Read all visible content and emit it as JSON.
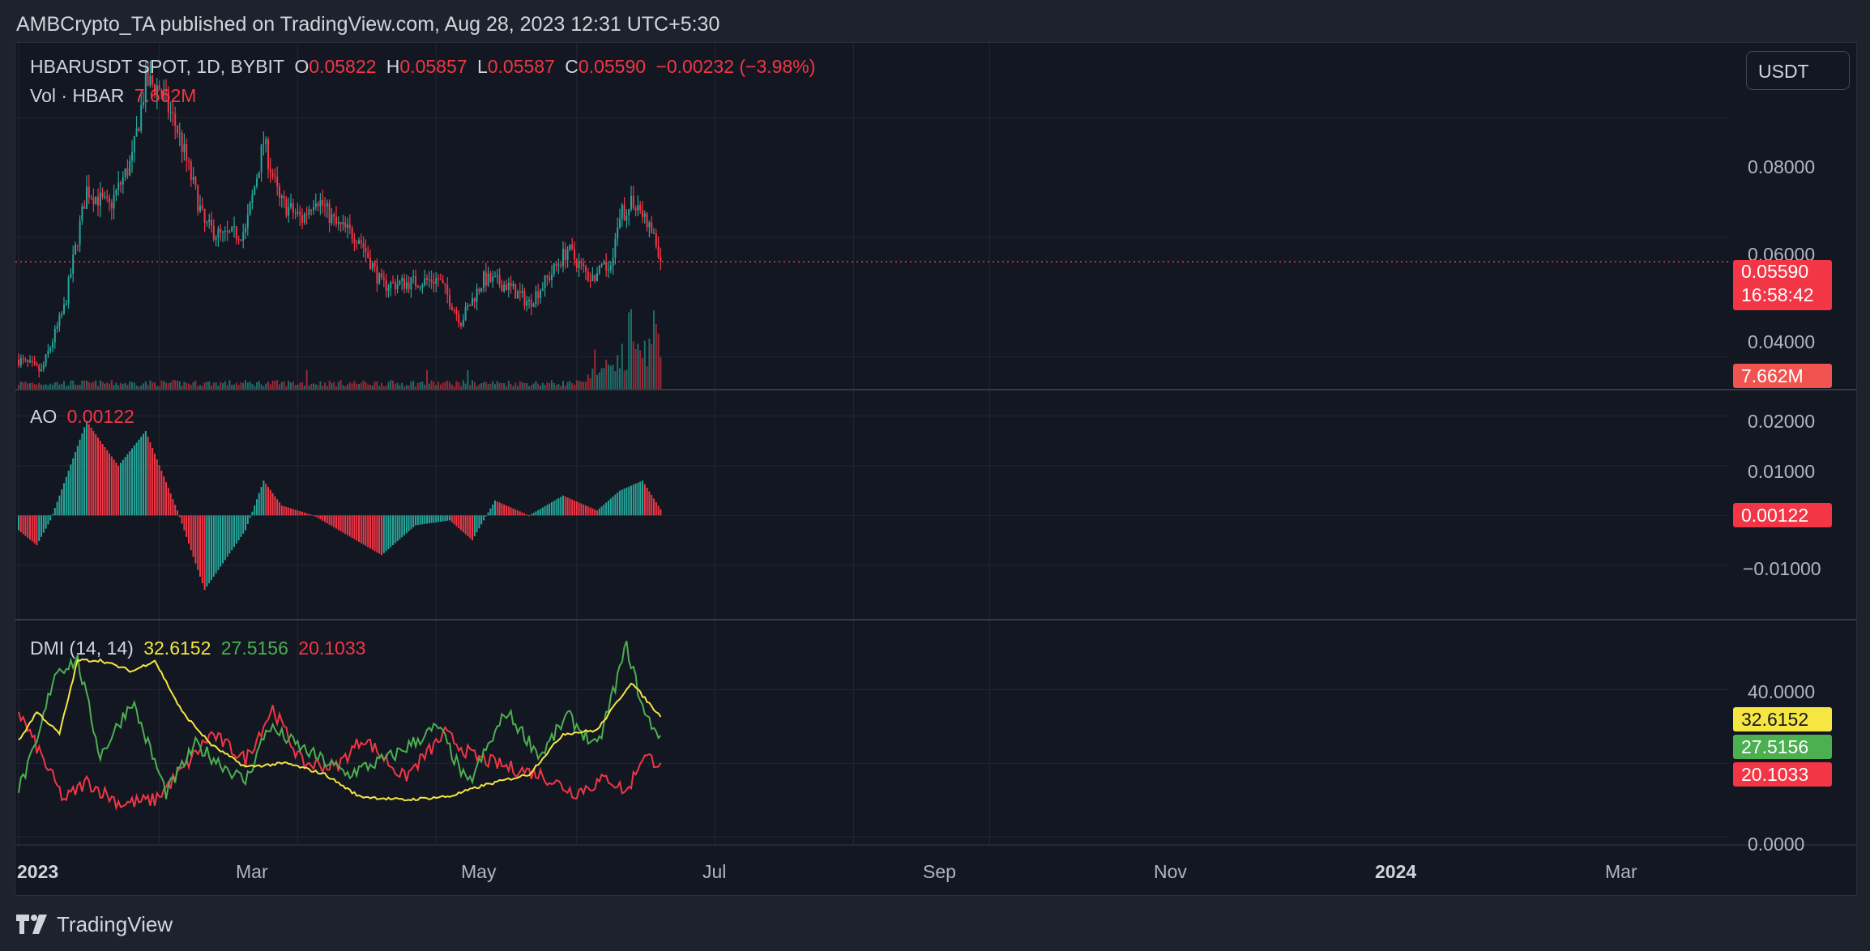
{
  "publisher": "AMBCrypto_TA published on TradingView.com, Aug 28, 2023 12:31 UTC+5:30",
  "brand": {
    "name": "TradingView",
    "icon": "tradingview-logo-icon"
  },
  "currency": "USDT",
  "symbol": {
    "name": "HBARUSDT SPOT, 1D, BYBIT",
    "o_label": "O",
    "o": "0.05822",
    "h_label": "H",
    "h": "0.05857",
    "l_label": "L",
    "l": "0.05587",
    "c_label": "C",
    "c": "0.05590",
    "change": "−0.00232 (−3.98%)"
  },
  "volume": {
    "label": "Vol · HBAR",
    "value": "7.662M"
  },
  "ao": {
    "label": "AO",
    "value": "0.00122"
  },
  "dmi": {
    "label": "DMI (14, 14)",
    "adx": "32.6152",
    "plus_di": "27.5156",
    "minus_di": "20.1033"
  },
  "price_axis": [
    "0.08000",
    "0.06000",
    "0.04000"
  ],
  "ao_axis": [
    "0.02000",
    "0.01000",
    "−0.01000"
  ],
  "dmi_axis": [
    "40.0000",
    "0.0000"
  ],
  "price_tag": {
    "price": "0.05590",
    "countdown": "16:58:42"
  },
  "time_axis": [
    "2023",
    "Mar",
    "May",
    "Jul",
    "Sep",
    "Nov",
    "2024",
    "Mar"
  ],
  "colors": {
    "up": "#26a69a",
    "down": "#f23645",
    "adx": "#f5e642",
    "plus_di": "#4caf50",
    "minus_di": "#f23645",
    "bg": "#131722",
    "grid": "#232734"
  },
  "chart_data": {
    "type": "candlestick",
    "x_range": [
      "2022-12-28",
      "2024-03-31"
    ],
    "price_ylim": [
      0.0345,
      0.0925
    ],
    "keyframes": [
      {
        "day": 0,
        "price": 0.0395
      },
      {
        "day": 10,
        "price": 0.0375
      },
      {
        "day": 20,
        "price": 0.048
      },
      {
        "day": 25,
        "price": 0.058
      },
      {
        "day": 30,
        "price": 0.068
      },
      {
        "day": 40,
        "price": 0.065
      },
      {
        "day": 50,
        "price": 0.073
      },
      {
        "day": 56,
        "price": 0.086
      },
      {
        "day": 62,
        "price": 0.085
      },
      {
        "day": 70,
        "price": 0.078
      },
      {
        "day": 82,
        "price": 0.062
      },
      {
        "day": 90,
        "price": 0.06
      },
      {
        "day": 100,
        "price": 0.061
      },
      {
        "day": 108,
        "price": 0.076
      },
      {
        "day": 115,
        "price": 0.066
      },
      {
        "day": 125,
        "price": 0.063
      },
      {
        "day": 131,
        "price": 0.067
      },
      {
        "day": 140,
        "price": 0.062
      },
      {
        "day": 150,
        "price": 0.06
      },
      {
        "day": 160,
        "price": 0.052
      },
      {
        "day": 175,
        "price": 0.0525
      },
      {
        "day": 185,
        "price": 0.053
      },
      {
        "day": 195,
        "price": 0.046
      },
      {
        "day": 205,
        "price": 0.053
      },
      {
        "day": 215,
        "price": 0.052
      },
      {
        "day": 225,
        "price": 0.049
      },
      {
        "day": 235,
        "price": 0.054
      },
      {
        "day": 242,
        "price": 0.058
      },
      {
        "day": 252,
        "price": 0.053
      },
      {
        "day": 260,
        "price": 0.055
      },
      {
        "day": 266,
        "price": 0.064
      },
      {
        "day": 272,
        "price": 0.066
      },
      {
        "day": 280,
        "price": 0.06
      },
      {
        "day": 283,
        "price": 0.0559
      }
    ],
    "ao_keyframes": [
      {
        "day": 0,
        "v": -0.003
      },
      {
        "day": 8,
        "v": -0.006
      },
      {
        "day": 14,
        "v": -0.001
      },
      {
        "day": 30,
        "v": 0.019
      },
      {
        "day": 36,
        "v": 0.015
      },
      {
        "day": 44,
        "v": 0.01
      },
      {
        "day": 56,
        "v": 0.017
      },
      {
        "day": 70,
        "v": 0.001
      },
      {
        "day": 82,
        "v": -0.015
      },
      {
        "day": 100,
        "v": -0.003
      },
      {
        "day": 108,
        "v": 0.007
      },
      {
        "day": 116,
        "v": 0.002
      },
      {
        "day": 130,
        "v": 0.0
      },
      {
        "day": 145,
        "v": -0.004
      },
      {
        "day": 160,
        "v": -0.008
      },
      {
        "day": 175,
        "v": -0.002
      },
      {
        "day": 190,
        "v": -0.001
      },
      {
        "day": 200,
        "v": -0.005
      },
      {
        "day": 210,
        "v": 0.003
      },
      {
        "day": 225,
        "v": 0.0
      },
      {
        "day": 240,
        "v": 0.004
      },
      {
        "day": 255,
        "v": 0.001
      },
      {
        "day": 265,
        "v": 0.005
      },
      {
        "day": 275,
        "v": 0.007
      },
      {
        "day": 283,
        "v": 0.00122
      }
    ],
    "dmi_ylim": [
      0,
      52
    ],
    "adx_keyframes": [
      {
        "day": 0,
        "v": 26
      },
      {
        "day": 8,
        "v": 34
      },
      {
        "day": 18,
        "v": 28
      },
      {
        "day": 26,
        "v": 48
      },
      {
        "day": 36,
        "v": 48
      },
      {
        "day": 50,
        "v": 45
      },
      {
        "day": 60,
        "v": 48
      },
      {
        "day": 72,
        "v": 34
      },
      {
        "day": 85,
        "v": 25
      },
      {
        "day": 100,
        "v": 19
      },
      {
        "day": 118,
        "v": 20
      },
      {
        "day": 135,
        "v": 17
      },
      {
        "day": 150,
        "v": 11
      },
      {
        "day": 170,
        "v": 10
      },
      {
        "day": 190,
        "v": 11
      },
      {
        "day": 205,
        "v": 14
      },
      {
        "day": 225,
        "v": 17
      },
      {
        "day": 240,
        "v": 28
      },
      {
        "day": 255,
        "v": 29
      },
      {
        "day": 270,
        "v": 42
      },
      {
        "day": 283,
        "v": 32.6152
      }
    ],
    "plus_di_keyframes": [
      {
        "day": 0,
        "v": 13
      },
      {
        "day": 8,
        "v": 25
      },
      {
        "day": 16,
        "v": 45
      },
      {
        "day": 26,
        "v": 48
      },
      {
        "day": 36,
        "v": 22
      },
      {
        "day": 50,
        "v": 37
      },
      {
        "day": 65,
        "v": 12
      },
      {
        "day": 78,
        "v": 25
      },
      {
        "day": 100,
        "v": 15
      },
      {
        "day": 110,
        "v": 30
      },
      {
        "day": 125,
        "v": 24
      },
      {
        "day": 145,
        "v": 17
      },
      {
        "day": 165,
        "v": 22
      },
      {
        "day": 185,
        "v": 30
      },
      {
        "day": 198,
        "v": 14
      },
      {
        "day": 215,
        "v": 34
      },
      {
        "day": 230,
        "v": 22
      },
      {
        "day": 242,
        "v": 33
      },
      {
        "day": 255,
        "v": 24
      },
      {
        "day": 268,
        "v": 52
      },
      {
        "day": 276,
        "v": 33
      },
      {
        "day": 283,
        "v": 27.5156
      }
    ],
    "minus_di_keyframes": [
      {
        "day": 0,
        "v": 34
      },
      {
        "day": 10,
        "v": 22
      },
      {
        "day": 20,
        "v": 10
      },
      {
        "day": 30,
        "v": 15
      },
      {
        "day": 45,
        "v": 9
      },
      {
        "day": 60,
        "v": 10
      },
      {
        "day": 72,
        "v": 18
      },
      {
        "day": 85,
        "v": 28
      },
      {
        "day": 100,
        "v": 21
      },
      {
        "day": 112,
        "v": 35
      },
      {
        "day": 125,
        "v": 20
      },
      {
        "day": 140,
        "v": 19
      },
      {
        "day": 152,
        "v": 27
      },
      {
        "day": 170,
        "v": 16
      },
      {
        "day": 188,
        "v": 28
      },
      {
        "day": 200,
        "v": 22
      },
      {
        "day": 215,
        "v": 19
      },
      {
        "day": 230,
        "v": 17
      },
      {
        "day": 245,
        "v": 12
      },
      {
        "day": 260,
        "v": 16
      },
      {
        "day": 268,
        "v": 12
      },
      {
        "day": 275,
        "v": 22
      },
      {
        "day": 283,
        "v": 20.1033
      }
    ]
  }
}
